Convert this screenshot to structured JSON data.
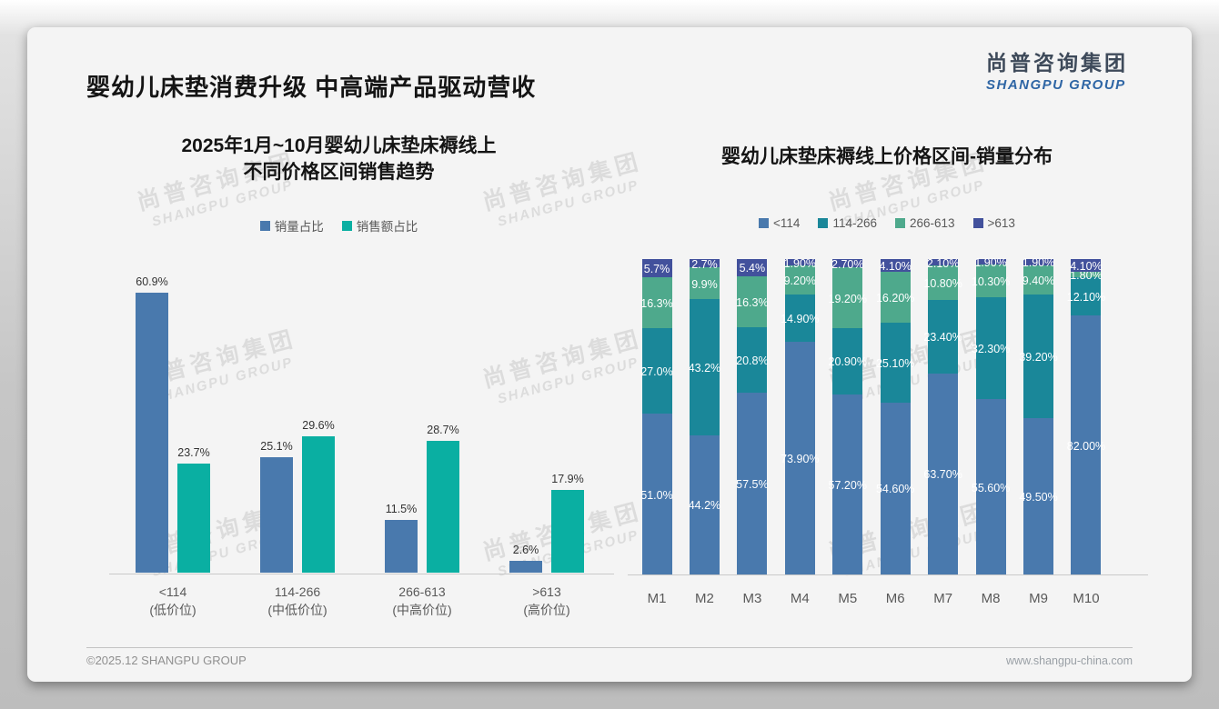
{
  "page": {
    "title": "婴幼儿床垫消费升级 中高端产品驱动营收",
    "logo": {
      "cn": "尚普咨询集团",
      "en": "SHANGPU GROUP"
    },
    "watermark": {
      "cn": "尚普咨询集团",
      "en": "SHANGPU GROUP"
    },
    "footer": {
      "left": "©2025.12 SHANGPU GROUP",
      "right": "www.shangpu-china.com"
    }
  },
  "colors": {
    "steel_blue": "#4979ad",
    "bright_teal": "#0aafa2",
    "dark_teal": "#1a8799",
    "green": "#4ea98c",
    "indigo": "#42519c",
    "logo_cn": "#3e4a5a",
    "logo_en": "#2f66a5"
  },
  "chart_data": [
    {
      "type": "bar",
      "title_lines": [
        "2025年1月~10月婴幼儿床垫床褥线上",
        "不同价格区间销售趋势"
      ],
      "categories": [
        "<114",
        "114-266",
        "266-613",
        ">613"
      ],
      "category_sublabels": [
        "(低价位)",
        "(中低价位)",
        "(中高价位)",
        "(高价位)"
      ],
      "series": [
        {
          "name": "销量占比",
          "color": "#4979ad",
          "values": [
            60.9,
            25.1,
            11.5,
            2.6
          ],
          "labels": [
            "60.9%",
            "25.1%",
            "11.5%",
            "2.6%"
          ]
        },
        {
          "name": "销售额占比",
          "color": "#0aafa2",
          "values": [
            23.7,
            29.6,
            28.7,
            17.9
          ],
          "labels": [
            "23.7%",
            "29.6%",
            "28.7%",
            "17.9%"
          ]
        }
      ],
      "ylim": [
        0,
        65
      ],
      "grid": false,
      "legend_position": "top",
      "value_labels": "above-bars"
    },
    {
      "type": "stacked-bar",
      "title": "婴幼儿床垫床褥线上价格区间-销量分布",
      "categories": [
        "M1",
        "M2",
        "M3",
        "M4",
        "M5",
        "M6",
        "M7",
        "M8",
        "M9",
        "M10"
      ],
      "series": [
        {
          "name": "<114",
          "color": "#4979ad",
          "values": [
            51.0,
            44.2,
            57.5,
            73.9,
            57.2,
            54.6,
            63.7,
            55.6,
            49.5,
            82.0
          ],
          "labels": [
            "51.0%",
            "44.2%",
            "57.5%",
            "73.90%",
            "57.20%",
            "54.60%",
            "63.70%",
            "55.60%",
            "49.50%",
            "82.00%"
          ]
        },
        {
          "name": "114-266",
          "color": "#1a8799",
          "values": [
            27.0,
            43.2,
            20.8,
            14.9,
            20.9,
            25.1,
            23.4,
            32.3,
            39.2,
            12.1
          ],
          "labels": [
            "27.0%",
            "43.2%",
            "20.8%",
            "14.90%",
            "20.90%",
            "25.10%",
            "23.40%",
            "32.30%",
            "39.20%",
            "12.10%"
          ]
        },
        {
          "name": "266-613",
          "color": "#4ea98c",
          "values": [
            16.3,
            9.9,
            16.3,
            9.2,
            19.2,
            16.2,
            10.8,
            10.3,
            9.4,
            1.8
          ],
          "labels": [
            "16.3%",
            "9.9%",
            "16.3%",
            "9.20%",
            "19.20%",
            "16.20%",
            "10.80%",
            "10.30%",
            "9.40%",
            "1.80%"
          ]
        },
        {
          "name": ">613",
          "color": "#42519c",
          "values": [
            5.7,
            2.7,
            5.4,
            1.9,
            2.7,
            4.1,
            2.1,
            1.9,
            1.9,
            4.1
          ],
          "labels": [
            "5.7%",
            "2.7%",
            "5.4%",
            "1.90%",
            "2.70%",
            "4.10%",
            "2.10%",
            "1.90%",
            "1.90%",
            "4.10%"
          ]
        }
      ],
      "ylim": [
        0,
        100
      ],
      "grid": false,
      "legend_position": "top",
      "value_labels": "inside-segments"
    }
  ]
}
